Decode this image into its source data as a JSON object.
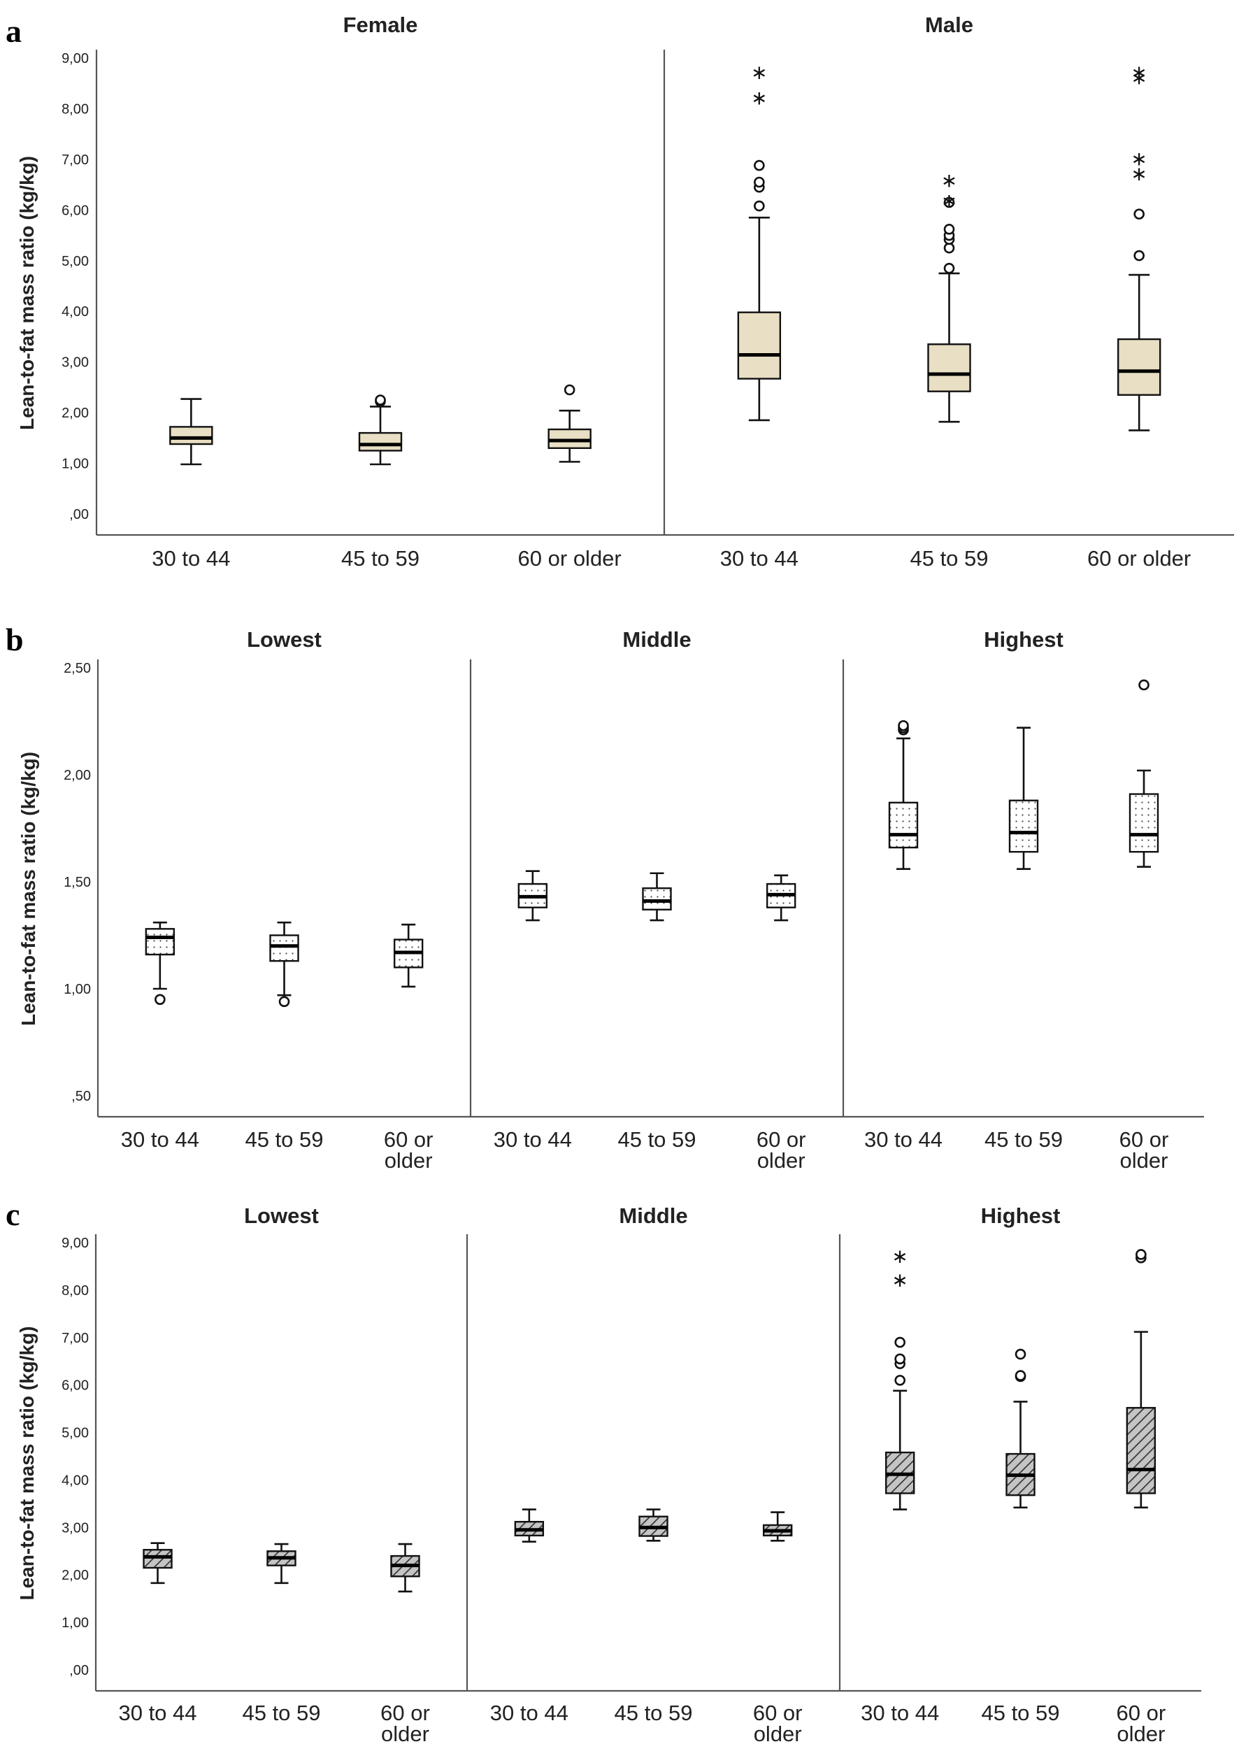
{
  "chart_data": [
    {
      "type": "boxplot",
      "panel_label": "a",
      "ylabel": "Lean-to-fat mass ratio (kg/kg)",
      "ylim": [
        0,
        9.5
      ],
      "yticks": [
        0,
        1,
        2,
        3,
        4,
        5,
        6,
        7,
        8,
        9
      ],
      "ytick_labels": [
        ",00",
        "1,00",
        "2,00",
        "3,00",
        "4,00",
        "5,00",
        "6,00",
        "7,00",
        "8,00",
        "9,00"
      ],
      "fill": "#e8dfc4",
      "pattern": "solid",
      "facets": [
        {
          "title": "Female",
          "categories": [
            "30 to 44",
            "45 to 59",
            "60 or older"
          ],
          "boxes": [
            {
              "min": 0.98,
              "q1": 1.38,
              "median": 1.5,
              "q3": 1.72,
              "max": 2.27,
              "outliers": [],
              "extremes": []
            },
            {
              "min": 0.98,
              "q1": 1.25,
              "median": 1.37,
              "q3": 1.6,
              "max": 2.12,
              "outliers": [
                2.22,
                2.25
              ],
              "extremes": []
            },
            {
              "min": 1.03,
              "q1": 1.3,
              "median": 1.45,
              "q3": 1.67,
              "max": 2.04,
              "outliers": [
                2.45
              ],
              "extremes": []
            }
          ]
        },
        {
          "title": "Male",
          "categories": [
            "30 to 44",
            "45 to 59",
            "60 or older"
          ],
          "boxes": [
            {
              "min": 1.85,
              "q1": 2.67,
              "median": 3.14,
              "q3": 3.98,
              "max": 5.85,
              "outliers": [
                6.08,
                6.45,
                6.55,
                6.88
              ],
              "extremes": [
                8.25,
                8.75
              ]
            },
            {
              "min": 1.82,
              "q1": 2.42,
              "median": 2.76,
              "q3": 3.35,
              "max": 4.75,
              "outliers": [
                4.85,
                5.25,
                5.42,
                5.5,
                5.62,
                6.15
              ],
              "extremes": [
                6.22,
                6.62
              ]
            },
            {
              "min": 1.65,
              "q1": 2.35,
              "median": 2.82,
              "q3": 3.45,
              "max": 4.72,
              "outliers": [
                5.1,
                5.92
              ],
              "extremes": [
                6.75,
                7.05,
                8.65,
                8.75
              ]
            }
          ]
        }
      ]
    },
    {
      "type": "boxplot",
      "panel_label": "b",
      "ylabel": "Lean-to-fat mass ratio (kg/kg)",
      "ylim": [
        0.45,
        2.6
      ],
      "yticks": [
        0.5,
        1.0,
        1.5,
        2.0,
        2.5
      ],
      "ytick_labels": [
        ",50",
        "1,00",
        "1,50",
        "2,00",
        "2,50"
      ],
      "fill": "#ffffff",
      "pattern": "dots",
      "facets": [
        {
          "title": "Lowest",
          "categories": [
            "30 to 44",
            "45 to 59",
            "60 or\nolder"
          ],
          "boxes": [
            {
              "min": 1.0,
              "q1": 1.16,
              "median": 1.24,
              "q3": 1.28,
              "max": 1.31,
              "outliers": [
                0.95
              ],
              "extremes": []
            },
            {
              "min": 0.97,
              "q1": 1.13,
              "median": 1.2,
              "q3": 1.25,
              "max": 1.31,
              "outliers": [
                0.94
              ],
              "extremes": []
            },
            {
              "min": 1.01,
              "q1": 1.1,
              "median": 1.17,
              "q3": 1.23,
              "max": 1.3,
              "outliers": [],
              "extremes": []
            }
          ]
        },
        {
          "title": "Middle",
          "categories": [
            "30 to 44",
            "45 to 59",
            "60 or\nolder"
          ],
          "boxes": [
            {
              "min": 1.32,
              "q1": 1.38,
              "median": 1.43,
              "q3": 1.49,
              "max": 1.55,
              "outliers": [],
              "extremes": []
            },
            {
              "min": 1.32,
              "q1": 1.37,
              "median": 1.41,
              "q3": 1.47,
              "max": 1.54,
              "outliers": [],
              "extremes": []
            },
            {
              "min": 1.32,
              "q1": 1.38,
              "median": 1.44,
              "q3": 1.49,
              "max": 1.53,
              "outliers": [],
              "extremes": []
            }
          ]
        },
        {
          "title": "Highest",
          "categories": [
            "30 to 44",
            "45 to 59",
            "60 or\nolder"
          ],
          "boxes": [
            {
              "min": 1.56,
              "q1": 1.66,
              "median": 1.72,
              "q3": 1.87,
              "max": 2.17,
              "outliers": [
                2.21,
                2.22,
                2.23
              ],
              "extremes": []
            },
            {
              "min": 1.56,
              "q1": 1.64,
              "median": 1.73,
              "q3": 1.88,
              "max": 2.22,
              "outliers": [],
              "extremes": []
            },
            {
              "min": 1.57,
              "q1": 1.64,
              "median": 1.72,
              "q3": 1.91,
              "max": 2.02,
              "outliers": [
                2.42
              ],
              "extremes": []
            }
          ]
        }
      ]
    },
    {
      "type": "boxplot",
      "panel_label": "c",
      "ylabel": "Lean-to-fat mass ratio (kg/kg)",
      "ylim": [
        0,
        9.5
      ],
      "yticks": [
        0,
        1,
        2,
        3,
        4,
        5,
        6,
        7,
        8,
        9
      ],
      "ytick_labels": [
        ",00",
        "1,00",
        "2,00",
        "3,00",
        "4,00",
        "5,00",
        "6,00",
        "7,00",
        "8,00",
        "9,00"
      ],
      "fill": "#bdbdbd",
      "pattern": "hatch",
      "facets": [
        {
          "title": "Lowest",
          "categories": [
            "30 to 44",
            "45 to 59",
            "60 or\nolder"
          ],
          "boxes": [
            {
              "min": 1.83,
              "q1": 2.15,
              "median": 2.38,
              "q3": 2.53,
              "max": 2.67,
              "outliers": [],
              "extremes": []
            },
            {
              "min": 1.83,
              "q1": 2.2,
              "median": 2.36,
              "q3": 2.5,
              "max": 2.65,
              "outliers": [],
              "extremes": []
            },
            {
              "min": 1.65,
              "q1": 1.97,
              "median": 2.2,
              "q3": 2.4,
              "max": 2.65,
              "outliers": [],
              "extremes": []
            }
          ]
        },
        {
          "title": "Middle",
          "categories": [
            "30 to 44",
            "45 to 59",
            "60 or\nolder"
          ],
          "boxes": [
            {
              "min": 2.7,
              "q1": 2.83,
              "median": 2.95,
              "q3": 3.12,
              "max": 3.38,
              "outliers": [],
              "extremes": []
            },
            {
              "min": 2.72,
              "q1": 2.82,
              "median": 3.0,
              "q3": 3.23,
              "max": 3.38,
              "outliers": [],
              "extremes": []
            },
            {
              "min": 2.72,
              "q1": 2.83,
              "median": 2.93,
              "q3": 3.05,
              "max": 3.32,
              "outliers": [],
              "extremes": []
            }
          ]
        },
        {
          "title": "Highest",
          "categories": [
            "30 to 44",
            "45 to 59",
            "60 or\nolder"
          ],
          "boxes": [
            {
              "min": 3.38,
              "q1": 3.72,
              "median": 4.12,
              "q3": 4.58,
              "max": 5.88,
              "outliers": [
                6.1,
                6.45,
                6.55,
                6.9
              ],
              "extremes": [
                8.25,
                8.75
              ]
            },
            {
              "min": 3.42,
              "q1": 3.68,
              "median": 4.1,
              "q3": 4.55,
              "max": 5.65,
              "outliers": [
                6.18,
                6.2,
                6.65
              ],
              "extremes": []
            },
            {
              "min": 3.42,
              "q1": 3.72,
              "median": 4.22,
              "q3": 5.52,
              "max": 7.12,
              "outliers": [
                8.68,
                8.75
              ],
              "extremes": []
            }
          ]
        }
      ]
    }
  ]
}
